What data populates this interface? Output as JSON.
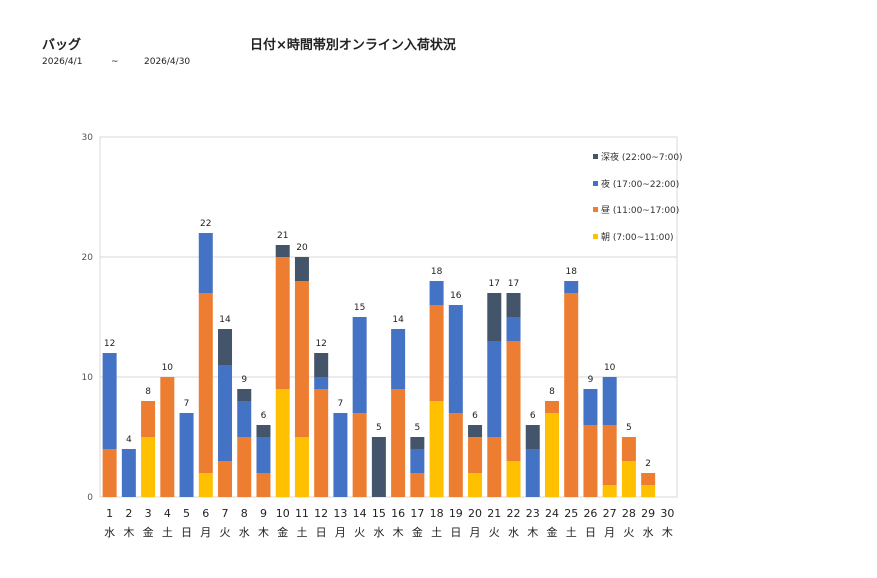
{
  "header": {
    "category": "バッグ",
    "title": "日付×時間帯別オンライン入荷状況",
    "date_from": "2026/4/1",
    "date_sep": "~",
    "date_to": "2026/4/30"
  },
  "chart_data": {
    "type": "bar",
    "stacked": true,
    "title": "日付×時間帯別オンライン入荷状況",
    "xlabel": "",
    "ylabel": "",
    "ylim": [
      0,
      30
    ],
    "yticks": [
      0,
      10,
      20,
      30
    ],
    "grid": true,
    "legend_position": "top-right",
    "categories": [
      "1",
      "2",
      "3",
      "4",
      "5",
      "6",
      "7",
      "8",
      "9",
      "10",
      "11",
      "12",
      "13",
      "14",
      "15",
      "16",
      "17",
      "18",
      "19",
      "20",
      "21",
      "22",
      "23",
      "24",
      "25",
      "26",
      "27",
      "28",
      "29",
      "30"
    ],
    "weekdays": [
      "水",
      "木",
      "金",
      "土",
      "日",
      "月",
      "火",
      "水",
      "木",
      "金",
      "土",
      "日",
      "月",
      "火",
      "水",
      "木",
      "金",
      "土",
      "日",
      "月",
      "火",
      "水",
      "木",
      "金",
      "土",
      "日",
      "月",
      "火",
      "水",
      "木"
    ],
    "totals": [
      12,
      4,
      8,
      10,
      7,
      22,
      14,
      9,
      6,
      21,
      20,
      12,
      7,
      15,
      5,
      14,
      5,
      18,
      16,
      6,
      17,
      17,
      6,
      8,
      18,
      9,
      10,
      5,
      2,
      null
    ],
    "series": [
      {
        "name": "朝 (7:00~11:00)",
        "color": "#FFC000",
        "values": [
          0,
          0,
          5,
          0,
          0,
          2,
          0,
          0,
          0,
          9,
          5,
          0,
          0,
          0,
          0,
          0,
          0,
          8,
          0,
          2,
          0,
          3,
          0,
          7,
          0,
          0,
          1,
          3,
          1,
          0
        ]
      },
      {
        "name": "昼 (11:00~17:00)",
        "color": "#ED7D31",
        "values": [
          4,
          0,
          3,
          10,
          0,
          15,
          3,
          5,
          2,
          11,
          13,
          9,
          0,
          7,
          0,
          9,
          2,
          8,
          7,
          3,
          5,
          10,
          0,
          1,
          17,
          6,
          5,
          2,
          1,
          0
        ]
      },
      {
        "name": "夜 (17:00~22:00)",
        "color": "#4472C4",
        "values": [
          8,
          4,
          0,
          0,
          7,
          5,
          8,
          3,
          3,
          0,
          0,
          1,
          7,
          8,
          0,
          5,
          2,
          2,
          9,
          0,
          8,
          2,
          4,
          0,
          1,
          3,
          4,
          0,
          0,
          0
        ]
      },
      {
        "name": "深夜 (22:00~7:00)",
        "color": "#44546A",
        "values": [
          0,
          0,
          0,
          0,
          0,
          0,
          3,
          1,
          1,
          1,
          2,
          2,
          0,
          0,
          5,
          0,
          1,
          0,
          0,
          1,
          4,
          2,
          2,
          0,
          0,
          0,
          0,
          0,
          0,
          0
        ]
      }
    ]
  }
}
